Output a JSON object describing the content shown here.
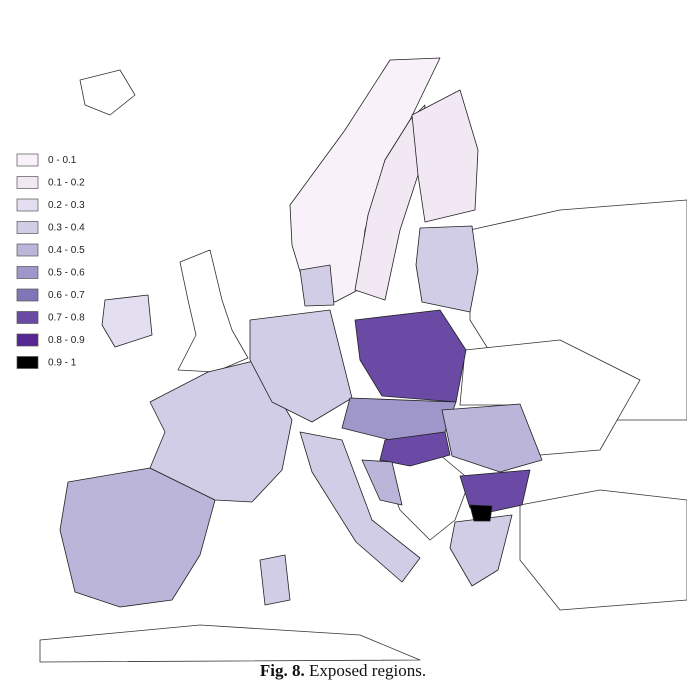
{
  "legend": {
    "items": [
      {
        "label": "0 - 0.1",
        "color": "#f8f1f9"
      },
      {
        "label": "0.1 - 0.2",
        "color": "#f1e8f4"
      },
      {
        "label": "0.2 - 0.3",
        "color": "#e3def0"
      },
      {
        "label": "0.3 - 0.4",
        "color": "#d1cde6"
      },
      {
        "label": "0.4 - 0.5",
        "color": "#bbb5da"
      },
      {
        "label": "0.5 - 0.6",
        "color": "#9f97c9"
      },
      {
        "label": "0.6 - 0.7",
        "color": "#7f76b7"
      },
      {
        "label": "0.7 - 0.8",
        "color": "#6a4aa4"
      },
      {
        "label": "0.8 - 0.9",
        "color": "#552894"
      },
      {
        "label": "0.9 - 1",
        "color": "#000000"
      }
    ]
  },
  "caption": {
    "label": "Fig. 8.",
    "text": "Exposed regions."
  }
}
